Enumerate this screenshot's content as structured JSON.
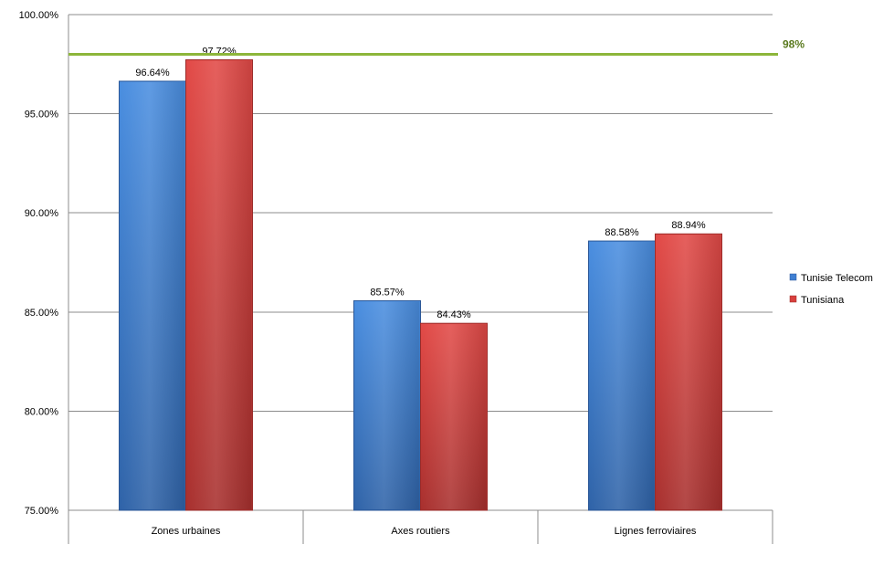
{
  "chart_data": {
    "type": "bar",
    "categories": [
      "Zones urbaines",
      "Axes routiers",
      "Lignes ferroviaires"
    ],
    "series": [
      {
        "name": "Tunisie Telecom",
        "values": [
          96.64,
          85.57,
          88.58
        ],
        "labels": [
          "96.64%",
          "85.57%",
          "88.58%"
        ],
        "color": "#3f7fd2"
      },
      {
        "name": "Tunisiana",
        "values": [
          97.72,
          84.43,
          88.94
        ],
        "labels": [
          "97.72%",
          "84.43%",
          "88.94%"
        ],
        "color": "#d8403e"
      }
    ],
    "ylim": [
      75,
      100
    ],
    "yticks": [
      75,
      80,
      85,
      90,
      95,
      100
    ],
    "ytick_labels": [
      "75.00%",
      "80.00%",
      "85.00%",
      "90.00%",
      "95.00%",
      "100.00%"
    ],
    "reference_line": {
      "value": 98,
      "label": "98%",
      "color": "#8db63a",
      "label_color": "#5a7a1e"
    },
    "grid": true,
    "legend_position": "right",
    "title": "",
    "xlabel": "",
    "ylabel": ""
  }
}
